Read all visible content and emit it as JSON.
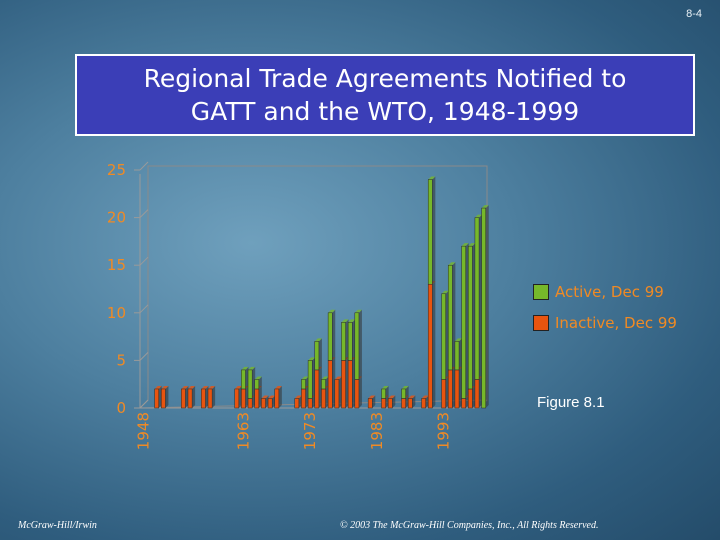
{
  "slide": {
    "number": "8-4"
  },
  "chart_data": {
    "type": "bar",
    "stacked": true,
    "title_lines": [
      "Regional Trade Agreements Notified to",
      "GATT and the WTO, 1948-1999"
    ],
    "x": [
      1948,
      1949,
      1950,
      1951,
      1952,
      1953,
      1954,
      1955,
      1956,
      1957,
      1958,
      1959,
      1960,
      1961,
      1962,
      1963,
      1964,
      1965,
      1966,
      1967,
      1968,
      1969,
      1970,
      1971,
      1972,
      1973,
      1974,
      1975,
      1976,
      1977,
      1978,
      1979,
      1980,
      1981,
      1982,
      1983,
      1984,
      1985,
      1986,
      1987,
      1988,
      1989,
      1990,
      1991,
      1992,
      1993,
      1994,
      1995,
      1996,
      1997,
      1998,
      1999
    ],
    "x_tick_labels": [
      "1948",
      "1963",
      "1973",
      "1983",
      "1993"
    ],
    "x_tick_years": [
      1948,
      1963,
      1973,
      1983,
      1993
    ],
    "yticks": [
      0,
      5,
      10,
      15,
      20,
      25
    ],
    "ylim": [
      0,
      25
    ],
    "series": [
      {
        "name": "Inactive, Dec 99",
        "color": "#e8540f",
        "values": [
          0,
          0,
          2,
          2,
          0,
          0,
          2,
          2,
          0,
          2,
          2,
          0,
          0,
          0,
          2,
          2,
          1,
          2,
          1,
          1,
          2,
          0,
          0,
          1,
          2,
          1,
          4,
          2,
          5,
          3,
          5,
          5,
          3,
          0,
          1,
          0,
          1,
          1,
          0,
          1,
          1,
          0,
          1,
          13,
          0,
          3,
          4,
          4,
          1,
          2,
          3,
          0
        ]
      },
      {
        "name": "Active, Dec 99",
        "color": "#76b82a",
        "values": [
          0,
          0,
          0,
          0,
          0,
          0,
          0,
          0,
          0,
          0,
          0,
          0,
          0,
          0,
          0,
          2,
          3,
          1,
          0,
          0,
          0,
          0,
          0,
          0,
          1,
          4,
          3,
          1,
          5,
          0,
          4,
          4,
          7,
          0,
          0,
          0,
          1,
          0,
          0,
          1,
          0,
          0,
          0,
          11,
          0,
          9,
          11,
          3,
          16,
          15,
          17,
          21
        ]
      }
    ],
    "legend_position": "right",
    "grid": false,
    "annotation": "Figure 8.1"
  },
  "footer": {
    "left": "McGraw-Hill/Irwin",
    "right": "© 2003 The McGraw-Hill Companies, Inc., All Rights Reserved."
  },
  "colors": {
    "title_bg": "#3b3eb7",
    "tick_label": "#f08a24",
    "legend_text": "#f08a24"
  }
}
